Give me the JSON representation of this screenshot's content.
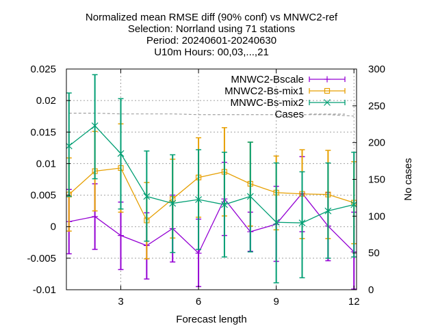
{
  "chart_data": {
    "type": "line",
    "title_lines": [
      "Normalized mean RMSE diff (90% conf) vs MNWC2-ref",
      "Selection: Norrland using    71 stations",
      "Period: 20240601-20240630",
      "U10m   Hours: 00,03,...,21"
    ],
    "xlabel": "Forecast length",
    "ylabel": "",
    "y2label": "No cases",
    "xlim": [
      0.9,
      12.1
    ],
    "ylim": [
      -0.01,
      0.025
    ],
    "y2lim": [
      0,
      300
    ],
    "x_ticks": [
      3,
      6,
      9,
      12
    ],
    "y_ticks": [
      -0.01,
      -0.005,
      0,
      0.005,
      0.01,
      0.015,
      0.02,
      0.025
    ],
    "y_tick_labels": [
      "-0.01",
      "-0.005",
      "0",
      "0.005",
      "0.01",
      "0.015",
      "0.02",
      "0.025"
    ],
    "y2_ticks": [
      0,
      50,
      100,
      150,
      200,
      250,
      300
    ],
    "grid": true,
    "legend_position": "top-right",
    "x": [
      1,
      2,
      3,
      4,
      5,
      6,
      7,
      8,
      9,
      10,
      11,
      12
    ],
    "series": [
      {
        "name": "MNWC2-Bscale",
        "color": "#9400d3",
        "marker": "plus",
        "values": [
          0.0008,
          0.0016,
          -0.0014,
          -0.003,
          -0.0003,
          -0.0042,
          0.0044,
          -0.0008,
          0.0004,
          0.0053,
          0.0001,
          -0.004
        ],
        "err_low": [
          -0.0043,
          -0.0036,
          -0.0068,
          -0.0083,
          -0.0056,
          -0.0095,
          -0.0014,
          -0.0039,
          -0.0055,
          -0.0008,
          -0.0054,
          -0.0099
        ],
        "err_high": [
          0.0059,
          0.0068,
          0.0039,
          0.0022,
          0.005,
          0.0012,
          0.0102,
          0.0023,
          0.0064,
          0.0111,
          0.0054,
          0.0023
        ]
      },
      {
        "name": "MNWC2-Bs-mix1",
        "color": "#e69f00",
        "marker": "square",
        "values": [
          0.0051,
          0.0088,
          0.0093,
          0.001,
          0.0044,
          0.0078,
          0.0087,
          0.0068,
          0.0054,
          0.0052,
          0.0051,
          0.0038
        ],
        "err_low": [
          -0.0007,
          0.0025,
          0.0023,
          -0.0051,
          -0.0018,
          0.0015,
          0.0017,
          0.0001,
          -0.0005,
          -0.0019,
          -0.0019,
          -0.0027
        ],
        "err_high": [
          0.0109,
          0.0151,
          0.0163,
          0.007,
          0.0107,
          0.0141,
          0.0157,
          0.0134,
          0.0112,
          0.0122,
          0.0121,
          0.0103
        ]
      },
      {
        "name": "MNWC-Bs-mix2",
        "color": "#009e73",
        "marker": "x",
        "values": [
          0.0128,
          0.016,
          0.0116,
          0.0048,
          0.0037,
          0.0043,
          0.0035,
          0.0048,
          0.0007,
          0.0006,
          0.0025,
          0.0035
        ],
        "err_low": [
          0.0048,
          0.0076,
          0.0028,
          -0.0023,
          -0.0041,
          -0.0036,
          -0.0048,
          -0.004,
          -0.0089,
          -0.0081,
          -0.005,
          -0.0048
        ],
        "err_high": [
          0.0212,
          0.0241,
          0.0203,
          0.012,
          0.0114,
          0.0122,
          0.0118,
          0.0134,
          0.0101,
          0.0087,
          0.0101,
          0.0118
        ]
      }
    ],
    "cases": {
      "name": "Cases",
      "color": "#a0a0a0",
      "axis": "y2",
      "values": [
        240,
        240,
        239,
        239,
        239,
        238,
        238,
        238,
        238,
        238,
        238,
        236
      ]
    }
  }
}
